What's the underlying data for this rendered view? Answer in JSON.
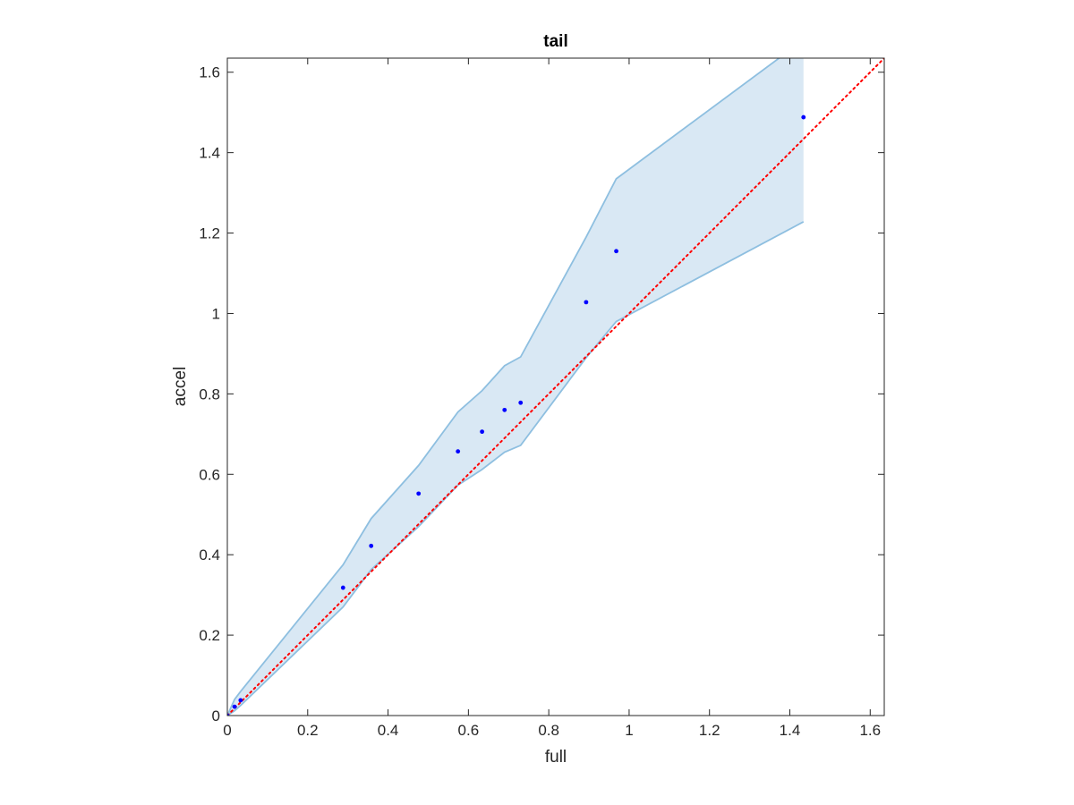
{
  "chart_data": {
    "type": "scatter",
    "title": "tail",
    "xlabel": "full",
    "ylabel": "accel",
    "xlim": [
      0,
      1.635
    ],
    "ylim": [
      0,
      1.635
    ],
    "xticks": [
      "0",
      "0.2",
      "0.4",
      "0.6",
      "0.8",
      "1",
      "1.2",
      "1.4",
      "1.6"
    ],
    "yticks": [
      "0",
      "0.2",
      "0.4",
      "0.6",
      "0.8",
      "1",
      "1.2",
      "1.4",
      "1.6"
    ],
    "xtick_values": [
      0,
      0.2,
      0.4,
      0.6,
      0.8,
      1.0,
      1.2,
      1.4,
      1.6
    ],
    "ytick_values": [
      0,
      0.2,
      0.4,
      0.6,
      0.8,
      1.0,
      1.2,
      1.4,
      1.6
    ],
    "grid": false,
    "points": {
      "color": "#0000ff",
      "x": [
        0,
        0.018,
        0.033,
        0.288,
        0.358,
        0.476,
        0.574,
        0.634,
        0.69,
        0.73,
        0.893,
        0.968,
        1.434
      ],
      "y": [
        0,
        0.022,
        0.038,
        0.318,
        0.422,
        0.552,
        0.657,
        0.706,
        0.76,
        0.778,
        1.028,
        1.155,
        1.488
      ]
    },
    "band": {
      "color": "#d9e8f4",
      "edge_color": "#8ebfe0",
      "x": [
        0,
        0.018,
        0.033,
        0.288,
        0.358,
        0.476,
        0.574,
        0.634,
        0.69,
        0.73,
        0.893,
        0.968,
        1.434
      ],
      "upper": [
        0,
        0.04,
        0.06,
        0.375,
        0.49,
        0.622,
        0.755,
        0.808,
        0.87,
        0.892,
        1.19,
        1.335,
        1.68
      ],
      "lower": [
        0,
        0.012,
        0.025,
        0.27,
        0.363,
        0.47,
        0.573,
        0.612,
        0.655,
        0.672,
        0.89,
        0.98,
        1.228
      ]
    },
    "reference_line": {
      "style": "dotted",
      "color": "#ff0000",
      "x": [
        0,
        1.635
      ],
      "y": [
        0,
        1.635
      ]
    }
  }
}
